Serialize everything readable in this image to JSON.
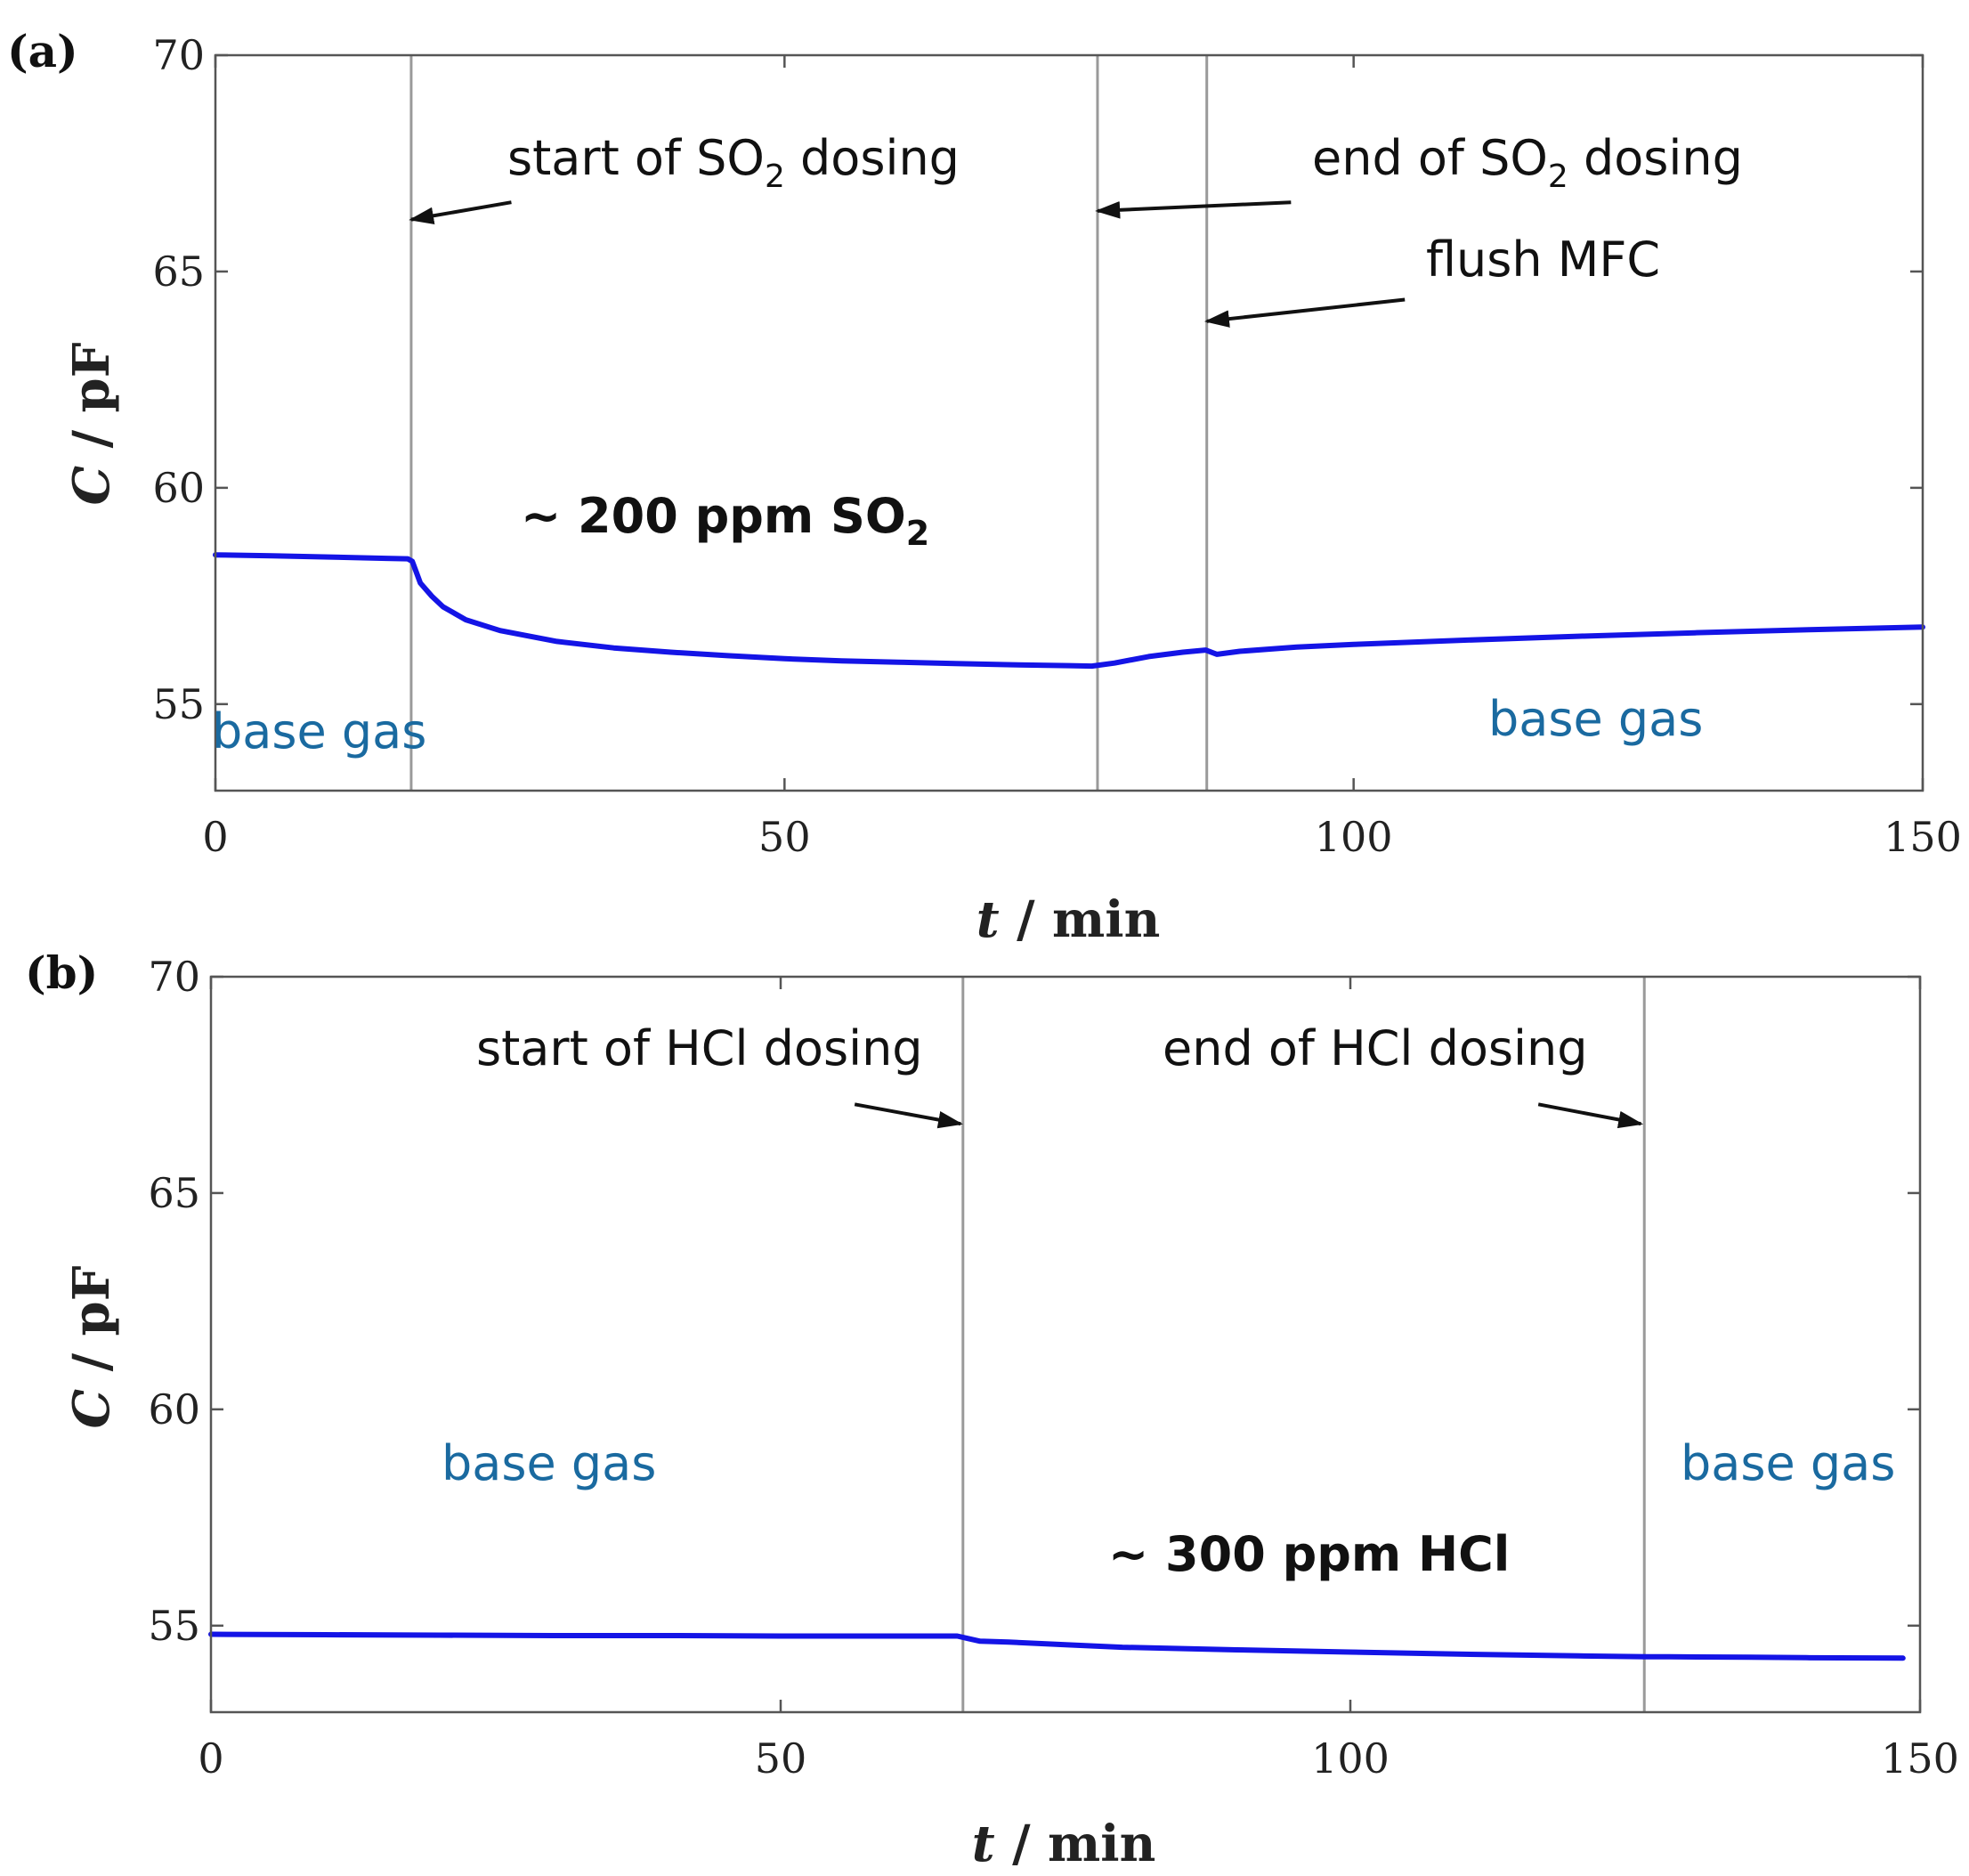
{
  "colors": {
    "trace": "#1414e6",
    "base_gas_text": "#1a6aa0"
  },
  "chart_data": [
    {
      "panel": "(a)",
      "type": "line",
      "xlabel_italic": "t",
      "xlabel_rest": " / min",
      "ylabel_italic": "C",
      "ylabel_rest": " / pF",
      "xlim": [
        0,
        150
      ],
      "ylim": [
        53,
        70
      ],
      "xticks": [
        "0",
        "50",
        "100",
        "150"
      ],
      "yticks": [
        "55",
        "60",
        "65",
        "70"
      ],
      "series": [
        {
          "name": "capacitance",
          "x": [
            0,
            5,
            10,
            15,
            16.9,
            17.3,
            18,
            19,
            20,
            22,
            25,
            30,
            35,
            40,
            45,
            50,
            55,
            60,
            65,
            70,
            75,
            77,
            79,
            82,
            85,
            87,
            88,
            90,
            95,
            100,
            110,
            120,
            130,
            140,
            150
          ],
          "y": [
            58.45,
            58.43,
            58.4,
            58.37,
            58.36,
            58.3,
            57.8,
            57.5,
            57.25,
            56.95,
            56.7,
            56.45,
            56.3,
            56.2,
            56.12,
            56.05,
            56.0,
            55.97,
            55.94,
            55.91,
            55.89,
            55.88,
            55.95,
            56.1,
            56.2,
            56.25,
            56.15,
            56.22,
            56.32,
            56.38,
            56.48,
            56.57,
            56.65,
            56.72,
            56.78
          ]
        }
      ],
      "vlines": [
        17.2,
        77.5,
        87.1
      ],
      "annotations": [
        {
          "parts": [
            "start of SO",
            "2",
            " dosing"
          ],
          "arrow_from": [
            26,
            66.6
          ],
          "arrow_to": [
            17.2,
            66.2
          ]
        },
        {
          "parts": [
            "end of  SO",
            "2",
            " dosing"
          ],
          "arrow_from": [
            94.5,
            66.6
          ],
          "arrow_to": [
            77.5,
            66.4
          ]
        },
        {
          "parts": [
            "flush MFC"
          ],
          "arrow_from": [
            104.5,
            64.35
          ],
          "arrow_to": [
            87.1,
            63.85
          ]
        }
      ],
      "concentration_label": {
        "parts": [
          "~ 200 ppm SO",
          "2"
        ]
      },
      "base_gas_labels": [
        "base gas",
        "base gas"
      ]
    },
    {
      "panel": "(b)",
      "type": "line",
      "xlabel_italic": "t",
      "xlabel_rest": " / min",
      "ylabel_italic": "C",
      "ylabel_rest": " / pF",
      "xlim": [
        0,
        150
      ],
      "ylim": [
        53,
        70
      ],
      "xticks": [
        "0",
        "50",
        "100",
        "150"
      ],
      "yticks": [
        "55",
        "60",
        "65",
        "70"
      ],
      "series": [
        {
          "name": "capacitance",
          "x": [
            0,
            10,
            20,
            30,
            40,
            50,
            60,
            65.5,
            66.5,
            67.5,
            70,
            75,
            80,
            90,
            100,
            110,
            120,
            126,
            128,
            135,
            140,
            148.5
          ],
          "y": [
            54.8,
            54.79,
            54.78,
            54.77,
            54.77,
            54.76,
            54.76,
            54.76,
            54.7,
            54.64,
            54.62,
            54.56,
            54.5,
            54.44,
            54.39,
            54.34,
            54.3,
            54.28,
            54.28,
            54.27,
            54.26,
            54.25
          ]
        }
      ],
      "vlines": [
        66,
        125.8
      ],
      "annotations": [
        {
          "parts": [
            "start of  HCl dosing"
          ],
          "arrow_from": [
            56.5,
            67.05
          ],
          "arrow_to": [
            65.8,
            66.6
          ]
        },
        {
          "parts": [
            "end of HCl dosing"
          ],
          "arrow_from": [
            116.5,
            67.05
          ],
          "arrow_to": [
            125.5,
            66.6
          ]
        }
      ],
      "concentration_label": {
        "parts": [
          "~ 300 ppm HCl"
        ]
      },
      "base_gas_labels": [
        "base gas",
        "base gas"
      ]
    }
  ]
}
